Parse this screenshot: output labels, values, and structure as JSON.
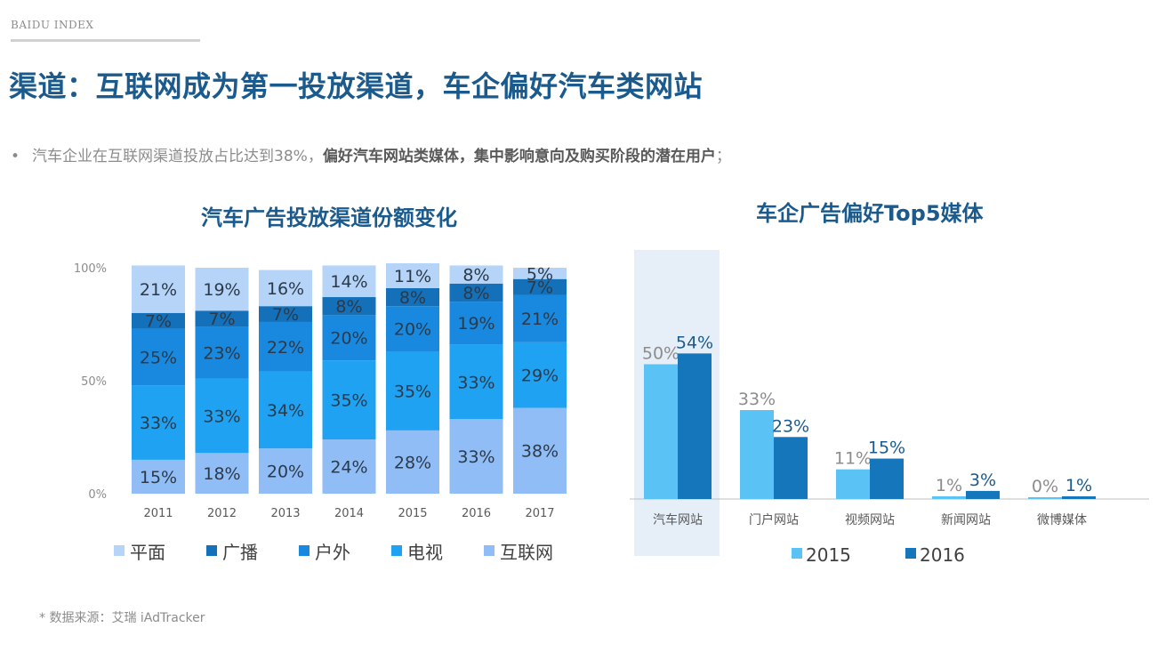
{
  "header": {
    "brand": "BAIDU INDEX",
    "title": "渠道：互联网成为第一投放渠道，车企偏好汽车类网站"
  },
  "bullet": {
    "marker": "•",
    "text_plain": "汽车企业在互联网渠道投放占比达到38%，",
    "text_bold": "偏好汽车网站类媒体，集中影响意向及购买阶段的潜在用户",
    "text_end": "；"
  },
  "footer": {
    "source": "* 数据来源：艾瑞 iAdTracker"
  },
  "chart_data": [
    {
      "type": "bar",
      "stacked": true,
      "title": "汽车广告投放渠道份额变化",
      "categories": [
        "2011",
        "2012",
        "2013",
        "2014",
        "2015",
        "2016",
        "2017"
      ],
      "yticks": [
        "0%",
        "50%",
        "100%"
      ],
      "ylim": [
        0,
        100
      ],
      "legend_position": "bottom",
      "series": [
        {
          "name": "互联网",
          "color": "#91bdf7",
          "values": [
            15,
            18,
            20,
            24,
            28,
            33,
            38
          ],
          "labels": [
            "15%",
            "18%",
            "20%",
            "24%",
            "28%",
            "33%",
            "38%"
          ]
        },
        {
          "name": "电视",
          "color": "#1fa2f2",
          "values": [
            33,
            33,
            34,
            35,
            35,
            33,
            29
          ],
          "labels": [
            "33%",
            "33%",
            "34%",
            "35%",
            "35%",
            "33%",
            "29%"
          ]
        },
        {
          "name": "户外",
          "color": "#1889de",
          "values": [
            25,
            23,
            22,
            20,
            20,
            19,
            21
          ],
          "labels": [
            "25%",
            "23%",
            "22%",
            "20%",
            "20%",
            "19%",
            "21%"
          ]
        },
        {
          "name": "广播",
          "color": "#1470b8",
          "values": [
            7,
            7,
            7,
            8,
            8,
            8,
            7
          ],
          "labels": [
            "7%",
            "7%",
            "7%",
            "8%",
            "8%",
            "8%",
            "7%"
          ]
        },
        {
          "name": "平面",
          "color": "#b6d4f7",
          "values": [
            21,
            19,
            16,
            14,
            11,
            8,
            5
          ],
          "labels": [
            "21%",
            "19%",
            "16%",
            "14%",
            "11%",
            "8%",
            "5%"
          ]
        }
      ],
      "legend_order": [
        "平面",
        "广播",
        "户外",
        "电视",
        "互联网"
      ]
    },
    {
      "type": "bar",
      "title": "车企广告偏好Top5媒体",
      "categories": [
        "汽车网站",
        "门户网站",
        "视频网站",
        "新闻网站",
        "微博媒体"
      ],
      "highlight_category": "汽车网站",
      "legend_position": "bottom",
      "series": [
        {
          "name": "2015",
          "color": "#5ac2f4",
          "label_color": "#8c8c8c",
          "values": [
            50,
            33,
            11,
            1,
            0
          ],
          "labels": [
            "50%",
            "33%",
            "11%",
            "1%",
            "0%"
          ]
        },
        {
          "name": "2016",
          "color": "#1676bb",
          "label_color": "#1b5a8c",
          "values": [
            54,
            23,
            15,
            3,
            1
          ],
          "labels": [
            "54%",
            "23%",
            "15%",
            "3%",
            "1%"
          ]
        }
      ]
    }
  ]
}
